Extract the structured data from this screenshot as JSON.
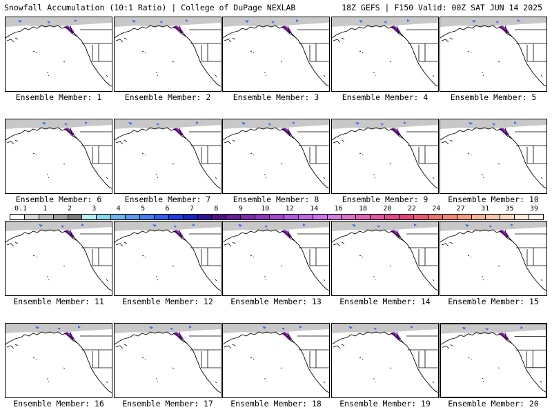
{
  "header": {
    "left": "Snowfall Accumulation (10:1 Ratio) | College of DuPage NEXLAB",
    "right": "18Z GEFS | F150 Valid: 00Z SAT JUN 14 2025"
  },
  "panels": [
    {
      "label": "Ensemble Member: 1"
    },
    {
      "label": "Ensemble Member: 2"
    },
    {
      "label": "Ensemble Member: 3"
    },
    {
      "label": "Ensemble Member: 4"
    },
    {
      "label": "Ensemble Member: 5"
    },
    {
      "label": "Ensemble Member: 6"
    },
    {
      "label": "Ensemble Member: 7"
    },
    {
      "label": "Ensemble Member: 8"
    },
    {
      "label": "Ensemble Member: 9"
    },
    {
      "label": "Ensemble Member: 10"
    },
    {
      "label": "Ensemble Member: 11"
    },
    {
      "label": "Ensemble Member: 12"
    },
    {
      "label": "Ensemble Member: 13"
    },
    {
      "label": "Ensemble Member: 14"
    },
    {
      "label": "Ensemble Member: 15"
    },
    {
      "label": "Ensemble Member: 16"
    },
    {
      "label": "Ensemble Member: 17"
    },
    {
      "label": "Ensemble Member: 18"
    },
    {
      "label": "Ensemble Member: 19"
    },
    {
      "label": "Ensemble Member: 20"
    }
  ],
  "colorbar": {
    "labels": [
      "0.1",
      "1",
      "2",
      "3",
      "4",
      "5",
      "6",
      "7",
      "8",
      "9",
      "10",
      "12",
      "14",
      "16",
      "18",
      "20",
      "22",
      "24",
      "27",
      "31",
      "35",
      "39"
    ],
    "colors": [
      "#ffffff",
      "#d9d9d9",
      "#bdbdbd",
      "#a0a0a0",
      "#7d7d7d",
      "#b8f0f4",
      "#8cd8ee",
      "#6fb4ec",
      "#5f9af0",
      "#4a7cf0",
      "#2f5ef0",
      "#1f3ee8",
      "#1426c8",
      "#34109a",
      "#54108a",
      "#6a1c9a",
      "#7f2aae",
      "#9236c0",
      "#a44ad0",
      "#b25ce0",
      "#c06ae8",
      "#cc76ea",
      "#d57ee0",
      "#dc74c8",
      "#e066b2",
      "#e2589e",
      "#e34a8a",
      "#e44678",
      "#e85c70",
      "#ec746c",
      "#f08a76",
      "#f49e84",
      "#f6b496",
      "#f8c8ac",
      "#fadcc4",
      "#fceedd",
      "#fff8ee"
    ]
  }
}
